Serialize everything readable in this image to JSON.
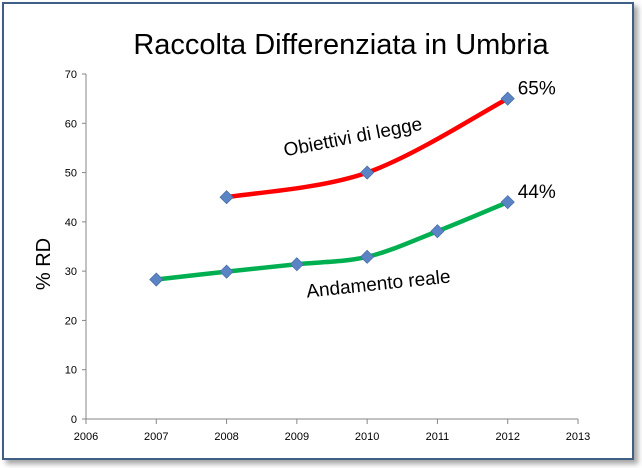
{
  "chart_data": {
    "type": "line",
    "title": "Raccolta Differenziata in Umbria",
    "xlabel": "",
    "ylabel": "% RD",
    "xlim": [
      2006,
      2013
    ],
    "ylim": [
      0,
      70
    ],
    "x_ticks": [
      2006,
      2007,
      2008,
      2009,
      2010,
      2011,
      2012,
      2013
    ],
    "y_ticks": [
      0,
      10,
      20,
      30,
      40,
      50,
      60,
      70
    ],
    "grid": false,
    "series": [
      {
        "name": "Obiettivi di legge",
        "color": "#ff0000",
        "x": [
          2008,
          2010,
          2012
        ],
        "values": [
          45,
          50,
          65
        ],
        "end_label": "65%"
      },
      {
        "name": "Andamento reale",
        "color": "#00b050",
        "x": [
          2007,
          2008,
          2009,
          2010,
          2011,
          2012
        ],
        "values": [
          28.3,
          29.9,
          31.4,
          32.9,
          38.1,
          44
        ],
        "end_label": "44%"
      }
    ],
    "marker_color": "#5b84c4"
  }
}
